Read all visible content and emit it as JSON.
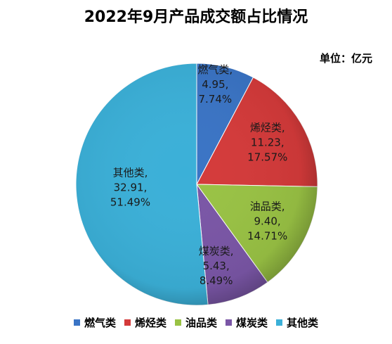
{
  "chart_data": {
    "type": "pie",
    "title": "2022年9月产品成交额占比情况",
    "unit_label": "单位：亿元",
    "slices": [
      {
        "name": "燃气类",
        "value": 4.95,
        "value_label": "4.95,",
        "percent_label": "7.74%",
        "name_label": "燃气类,",
        "color": "#3a74c5"
      },
      {
        "name": "烯烃类",
        "value": 11.23,
        "value_label": "11.23,",
        "percent_label": "17.57%",
        "name_label": "烯烃类,",
        "color": "#d43a3a"
      },
      {
        "name": "油品类",
        "value": 9.4,
        "value_label": "9.40,",
        "percent_label": "14.71%",
        "name_label": "油品类,",
        "color": "#99c244"
      },
      {
        "name": "煤炭类",
        "value": 5.43,
        "value_label": "5.43,",
        "percent_label": "8.49%",
        "name_label": "煤炭类,",
        "color": "#7a56a6"
      },
      {
        "name": "其他类",
        "value": 32.91,
        "value_label": "32.91,",
        "percent_label": "51.49%",
        "name_label": "其他类,",
        "color": "#3bb0d8"
      }
    ],
    "legend_position": "bottom",
    "start_angle_deg": 0,
    "direction": "clockwise"
  }
}
